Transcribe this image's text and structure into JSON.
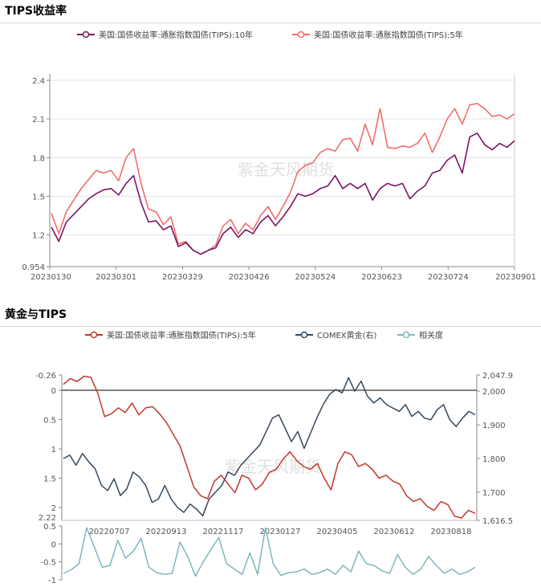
{
  "chart_data": [
    {
      "type": "line",
      "title": "TIPS收益率",
      "watermark": "紫金天风期货",
      "legend_position": "top",
      "grid": true,
      "ylim": [
        0.954,
        2.4
      ],
      "y_ticks": [
        "2.4",
        "2.1",
        "1.8",
        "1.5",
        "1.2",
        "0.954"
      ],
      "x_ticks": [
        "20230130",
        "20230301",
        "20230329",
        "20230426",
        "20230524",
        "20230623",
        "20230724",
        "20230901"
      ],
      "series": [
        {
          "name": "美国:国债收益率:通胀指数国债(TIPS):10年",
          "color": "#7b1561",
          "values": [
            1.26,
            1.15,
            1.3,
            1.36,
            1.42,
            1.48,
            1.52,
            1.55,
            1.56,
            1.51,
            1.6,
            1.66,
            1.45,
            1.3,
            1.31,
            1.24,
            1.27,
            1.11,
            1.14,
            1.08,
            1.05,
            1.08,
            1.1,
            1.21,
            1.26,
            1.18,
            1.24,
            1.21,
            1.3,
            1.35,
            1.27,
            1.34,
            1.42,
            1.52,
            1.5,
            1.52,
            1.56,
            1.58,
            1.66,
            1.56,
            1.6,
            1.56,
            1.6,
            1.47,
            1.56,
            1.6,
            1.58,
            1.6,
            1.48,
            1.54,
            1.58,
            1.68,
            1.7,
            1.78,
            1.82,
            1.68,
            1.96,
            1.99,
            1.9,
            1.86,
            1.91,
            1.88,
            1.93
          ]
        },
        {
          "name": "美国:国债收益率:通胀指数国债(TIPS):5年",
          "color": "#f26d6d",
          "values": [
            1.37,
            1.21,
            1.38,
            1.47,
            1.56,
            1.63,
            1.7,
            1.68,
            1.7,
            1.62,
            1.8,
            1.87,
            1.6,
            1.4,
            1.38,
            1.28,
            1.34,
            1.13,
            1.15,
            1.08,
            1.05,
            1.08,
            1.12,
            1.27,
            1.32,
            1.21,
            1.29,
            1.24,
            1.35,
            1.42,
            1.32,
            1.42,
            1.53,
            1.69,
            1.74,
            1.76,
            1.84,
            1.87,
            1.85,
            1.94,
            1.95,
            1.85,
            2.06,
            1.9,
            2.18,
            1.88,
            1.87,
            1.89,
            1.88,
            1.91,
            1.99,
            1.84,
            1.96,
            2.1,
            2.18,
            2.06,
            2.21,
            2.22,
            2.18,
            2.12,
            2.13,
            2.1,
            2.14
          ]
        }
      ]
    },
    {
      "type": "line",
      "title": "黄金与TIPS",
      "watermark": "紫金天风期货",
      "legend_position": "top",
      "grid": false,
      "left_axis": {
        "inverted": true,
        "range": [
          -0.26,
          2.22
        ],
        "ticks": [
          "-0.26",
          "0",
          "0.5",
          "1",
          "1.5",
          "2"
        ]
      },
      "right_axis": {
        "range": [
          1616.5,
          2047.9
        ],
        "ticks": [
          "2,047.9",
          "2,000",
          "1,900",
          "1,800",
          "1,700",
          "1,616.5"
        ]
      },
      "lower_axis": {
        "range": [
          -1,
          0.5
        ],
        "ticks": [
          "0.5",
          "0",
          "-0.5",
          "-1"
        ],
        "top_label": "2.22"
      },
      "x_ticks": [
        "20220707",
        "20220913",
        "20221117",
        "20230127",
        "20230405",
        "20230612",
        "20230818"
      ],
      "series": [
        {
          "name": "美国:国债收益率:通胀指数国债(TIPS):5年",
          "color": "#c0392b",
          "axis": "left",
          "values": [
            -0.1,
            -0.2,
            -0.15,
            -0.24,
            -0.22,
            0.05,
            0.45,
            0.4,
            0.3,
            0.38,
            0.22,
            0.42,
            0.3,
            0.28,
            0.4,
            0.55,
            0.75,
            0.95,
            1.3,
            1.65,
            1.8,
            1.85,
            1.55,
            1.45,
            1.6,
            1.75,
            1.45,
            1.5,
            1.7,
            1.6,
            1.4,
            1.35,
            1.18,
            1.05,
            1.2,
            1.3,
            1.35,
            1.25,
            1.5,
            1.7,
            1.25,
            1.05,
            1.1,
            1.3,
            1.25,
            1.35,
            1.5,
            1.45,
            1.55,
            1.6,
            1.8,
            1.9,
            1.85,
            1.98,
            2.05,
            1.9,
            1.95,
            2.15,
            2.18,
            2.05,
            2.1
          ]
        },
        {
          "name": "COMEX黄金(右)",
          "color": "#34495e",
          "axis": "right",
          "values": [
            1800,
            1810,
            1780,
            1815,
            1790,
            1770,
            1720,
            1705,
            1740,
            1690,
            1710,
            1760,
            1745,
            1720,
            1670,
            1680,
            1720,
            1680,
            1655,
            1640,
            1665,
            1650,
            1630,
            1680,
            1700,
            1720,
            1760,
            1750,
            1780,
            1800,
            1820,
            1840,
            1880,
            1920,
            1930,
            1890,
            1850,
            1880,
            1830,
            1875,
            1920,
            1960,
            1990,
            2005,
            1995,
            2040,
            2000,
            2030,
            1985,
            1965,
            1980,
            1960,
            1950,
            1940,
            1960,
            1925,
            1940,
            1920,
            1915,
            1945,
            1960,
            1915,
            1895,
            1920,
            1940,
            1930
          ]
        },
        {
          "name": "相关度",
          "color": "#7fb6bc",
          "axis": "lower",
          "values": [
            -0.82,
            -0.72,
            -0.55,
            0.45,
            -0.1,
            -0.65,
            -0.6,
            0.1,
            -0.4,
            -0.2,
            0.15,
            -0.65,
            -0.8,
            -0.85,
            -0.82,
            0.05,
            -0.35,
            -0.9,
            -0.5,
            -0.15,
            0.18,
            -0.55,
            -0.7,
            -0.85,
            -0.25,
            -0.85,
            0.45,
            -0.55,
            -0.88,
            -0.8,
            -0.78,
            -0.7,
            -0.85,
            -0.8,
            -0.7,
            -0.85,
            -0.6,
            -0.78,
            -0.2,
            -0.55,
            -0.6,
            -0.75,
            -0.82,
            -0.3,
            -0.65,
            -0.85,
            -0.7,
            -0.35,
            -0.6,
            -0.82,
            -0.7,
            -0.85,
            -0.78,
            -0.65
          ]
        }
      ]
    }
  ]
}
